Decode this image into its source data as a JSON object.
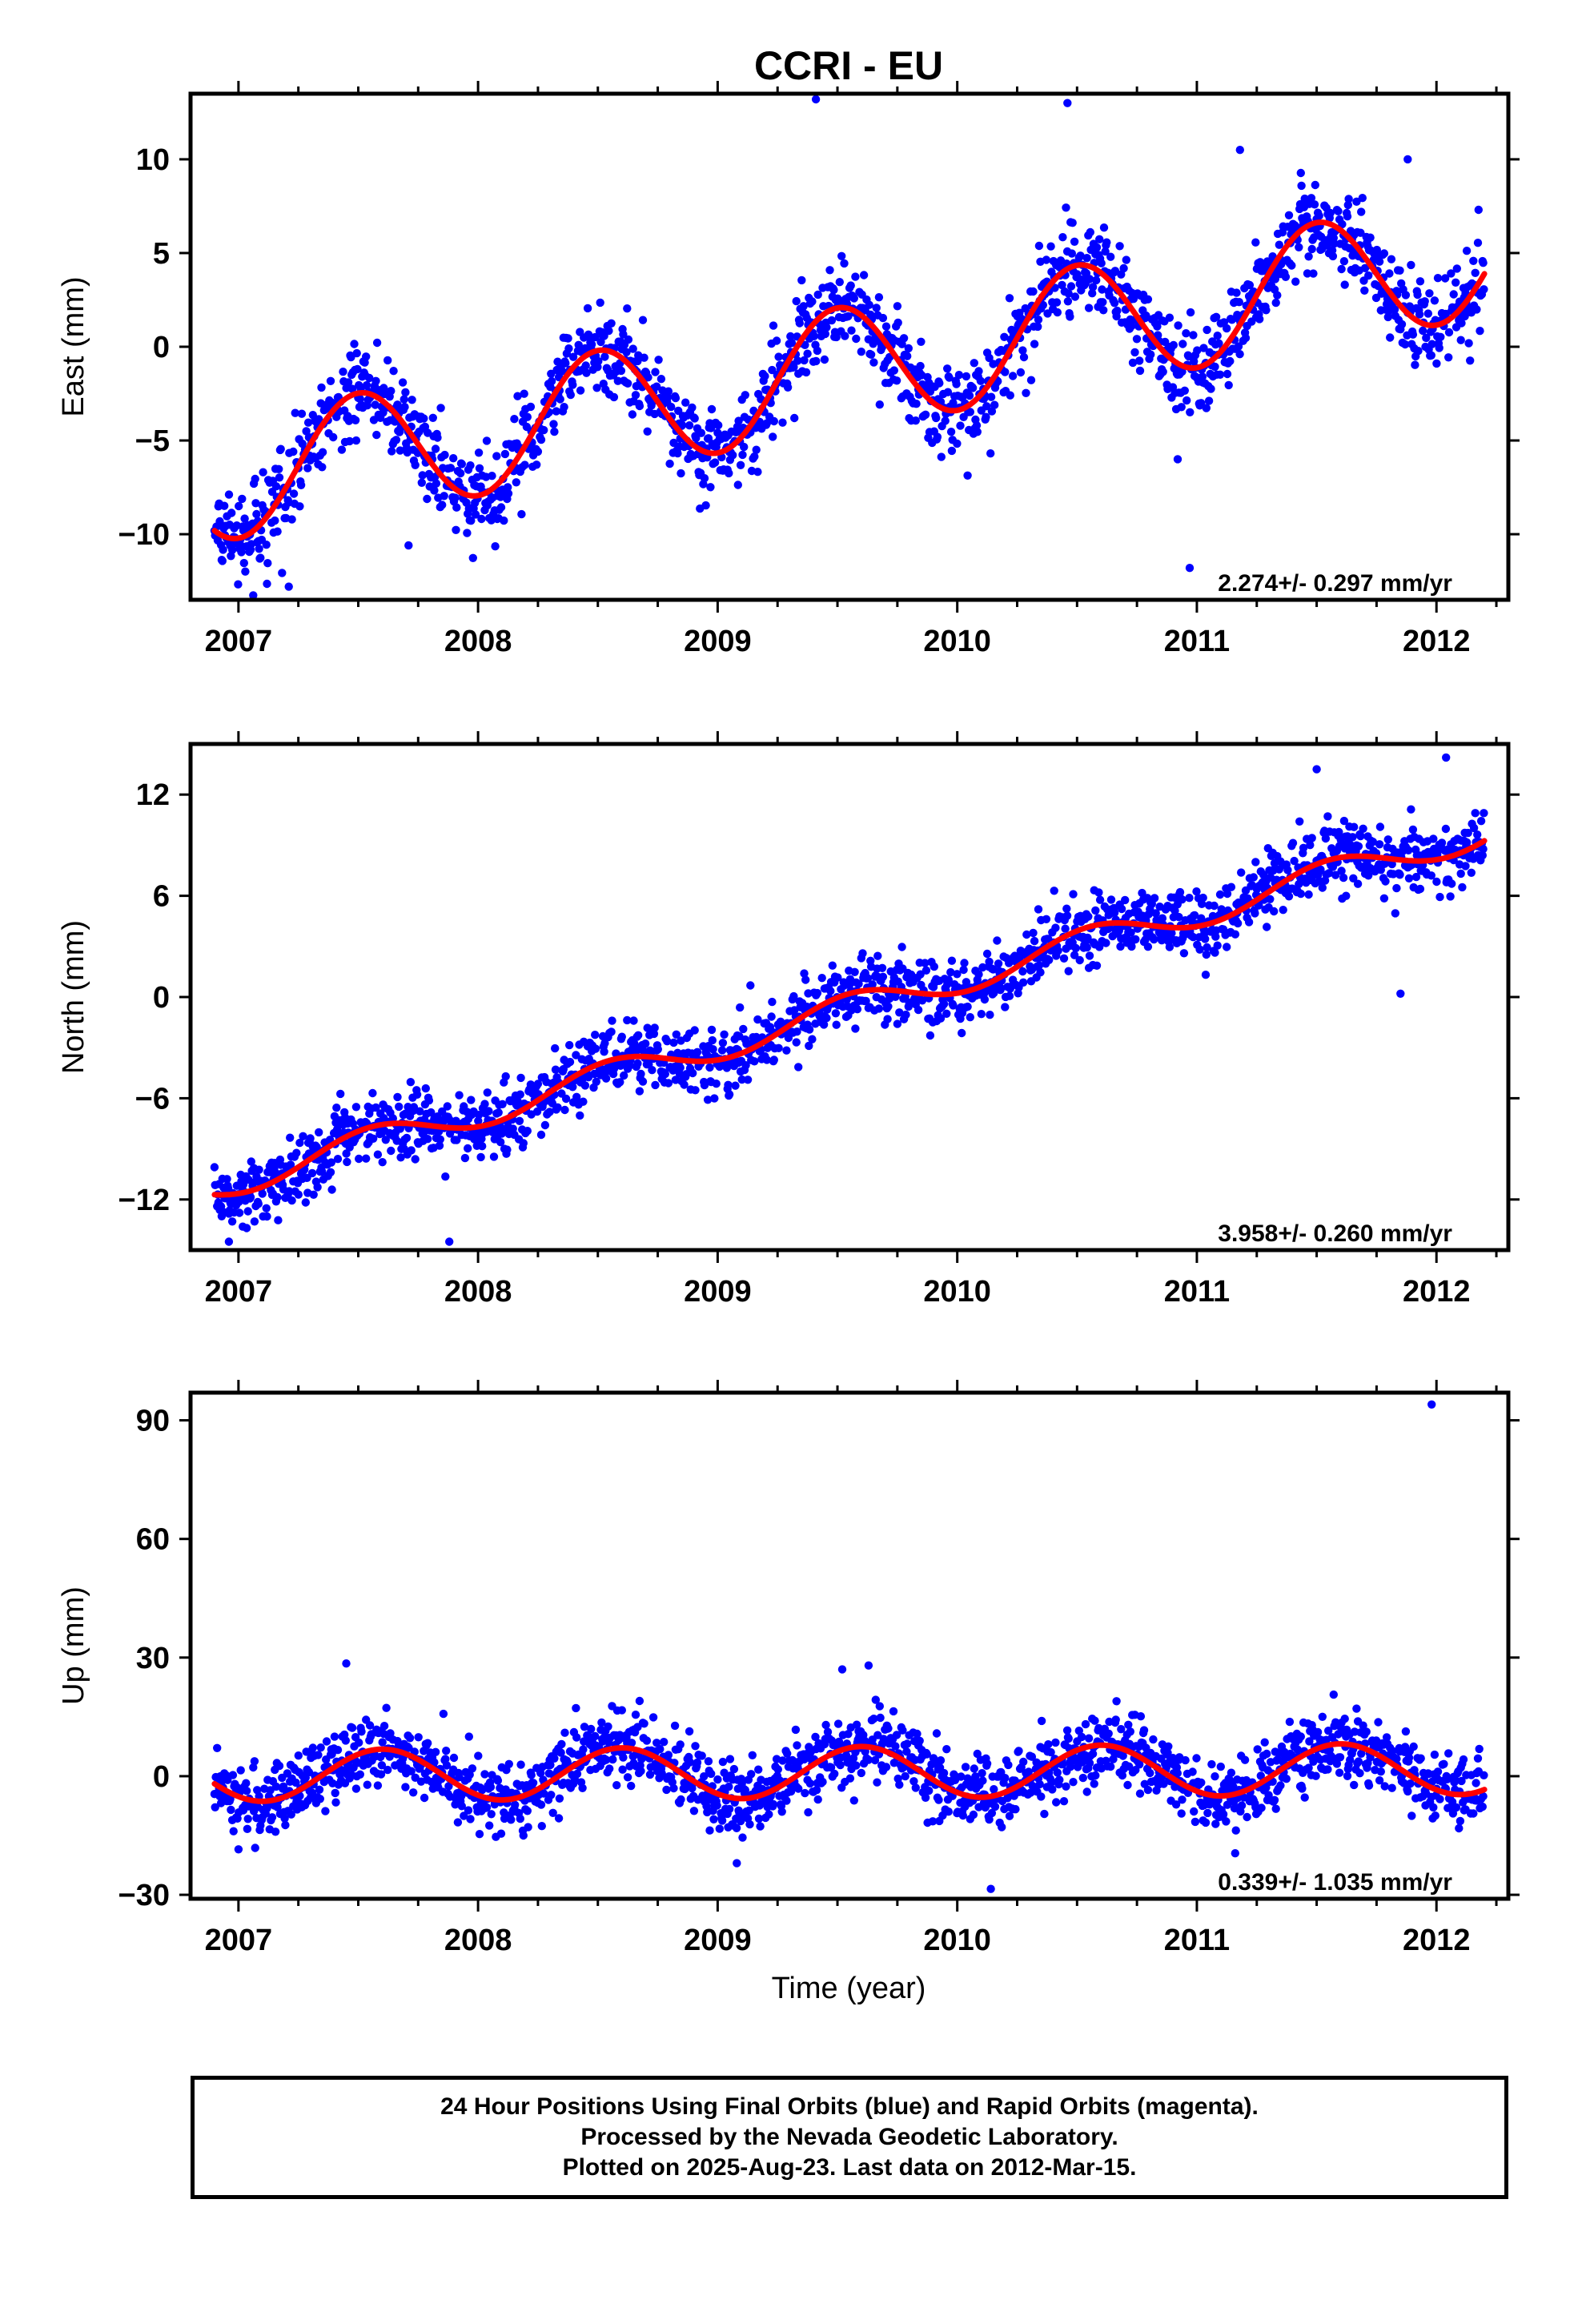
{
  "figure_title": "CCRI - EU",
  "colors": {
    "final_orbits": "#0000ff",
    "rapid_orbits": "#ff00ff",
    "model_fit": "#ff0000",
    "frame": "#000000"
  },
  "chart_data": [
    {
      "type": "scatter",
      "component": "East",
      "ylabel": "East (mm)",
      "xlabel": "",
      "xlim": [
        2006.8,
        2012.3
      ],
      "ylim": [
        -13.5,
        13.5
      ],
      "x_ticks": [
        2007,
        2008,
        2009,
        2010,
        2011,
        2012
      ],
      "y_ticks": [
        -10,
        -5,
        0,
        5,
        10
      ],
      "y_tick_labels": [
        "−10",
        "−5",
        "0",
        "5",
        "10"
      ],
      "rate_text": "2.274+/- 0.297 mm/yr",
      "grid": false,
      "series": [
        {
          "style": "points",
          "color": "#0000ff",
          "trend": {
            "rate": 2.274,
            "ref_epoch": 2009.6,
            "ref_value": -1.0
          },
          "seasonal": {
            "amplitude": 3.3,
            "peak_phase": 0.5
          },
          "scatter_sd": 1.2,
          "outliers": [
            [
              2007.21,
              -12.8
            ],
            [
              2009.41,
              13.2
            ],
            [
              2010.46,
              13.0
            ],
            [
              2010.97,
              -11.8
            ],
            [
              2010.92,
              -6.0
            ],
            [
              2007.71,
              -10.6
            ],
            [
              2011.18,
              10.5
            ],
            [
              2011.88,
              10.0
            ]
          ]
        },
        {
          "style": "line",
          "color": "#ff0000",
          "trend": {
            "rate": 2.274,
            "ref_epoch": 2009.6,
            "ref_value": -1.0
          },
          "seasonal": {
            "amplitude": 3.3,
            "peak_phase": 0.5
          }
        }
      ]
    },
    {
      "type": "scatter",
      "component": "North",
      "ylabel": "North (mm)",
      "xlabel": "",
      "xlim": [
        2006.8,
        2012.3
      ],
      "ylim": [
        -15,
        15
      ],
      "x_ticks": [
        2007,
        2008,
        2009,
        2010,
        2011,
        2012
      ],
      "y_ticks": [
        -12,
        -6,
        0,
        6,
        12
      ],
      "y_tick_labels": [
        "−12",
        "−6",
        "0",
        "6",
        "12"
      ],
      "rate_text": "3.958+/- 0.260 mm/yr",
      "grid": false,
      "series": [
        {
          "style": "points",
          "color": "#0000ff",
          "trend": {
            "rate": 3.958,
            "ref_epoch": 2009.6,
            "ref_value": -0.5
          },
          "seasonal": {
            "amplitude": 0.9,
            "peak_phase": 0.55
          },
          "scatter_sd": 1.0,
          "outliers": [
            [
              2006.96,
              -14.5
            ],
            [
              2007.88,
              -14.5
            ],
            [
              2011.85,
              0.2
            ],
            [
              2011.5,
              13.5
            ],
            [
              2012.04,
              14.2
            ]
          ]
        },
        {
          "style": "line",
          "color": "#ff0000",
          "trend": {
            "rate": 3.958,
            "ref_epoch": 2009.6,
            "ref_value": -0.5
          },
          "seasonal": {
            "amplitude": 0.9,
            "peak_phase": 0.55
          }
        }
      ]
    },
    {
      "type": "scatter",
      "component": "Up",
      "ylabel": "Up (mm)",
      "xlabel": "Time (year)",
      "xlim": [
        2006.8,
        2012.3
      ],
      "ylim": [
        -31,
        97
      ],
      "x_ticks": [
        2007,
        2008,
        2009,
        2010,
        2011,
        2012
      ],
      "y_ticks": [
        -30,
        0,
        30,
        60,
        90
      ],
      "y_tick_labels": [
        "−30",
        "0",
        "30",
        "60",
        "90"
      ],
      "rate_text": "0.339+/- 1.035 mm/yr",
      "grid": false,
      "series": [
        {
          "style": "points",
          "color": "#0000ff",
          "trend": {
            "rate": 0.339,
            "ref_epoch": 2009.6,
            "ref_value": 1.0
          },
          "seasonal": {
            "amplitude": 6.5,
            "peak_phase": 0.6
          },
          "scatter_sd": 4.5,
          "outliers": [
            [
              2011.98,
              94.0
            ],
            [
              2007.45,
              28.5
            ],
            [
              2009.52,
              27.0
            ],
            [
              2009.63,
              28.0
            ],
            [
              2010.14,
              -28.5
            ],
            [
              2011.16,
              -19.5
            ],
            [
              2007.0,
              -18.5
            ],
            [
              2009.08,
              -22.0
            ]
          ]
        },
        {
          "style": "line",
          "color": "#ff0000",
          "trend": {
            "rate": 0.339,
            "ref_epoch": 2009.6,
            "ref_value": 1.0
          },
          "seasonal": {
            "amplitude": 6.5,
            "peak_phase": 0.6
          }
        }
      ]
    }
  ],
  "footer": {
    "line1": "24 Hour Positions Using Final Orbits (blue) and Rapid Orbits (magenta).",
    "line2": "Processed by the Nevada Geodetic Laboratory.",
    "line3": "Plotted on 2025-Aug-23. Last data on 2012-Mar-15."
  }
}
